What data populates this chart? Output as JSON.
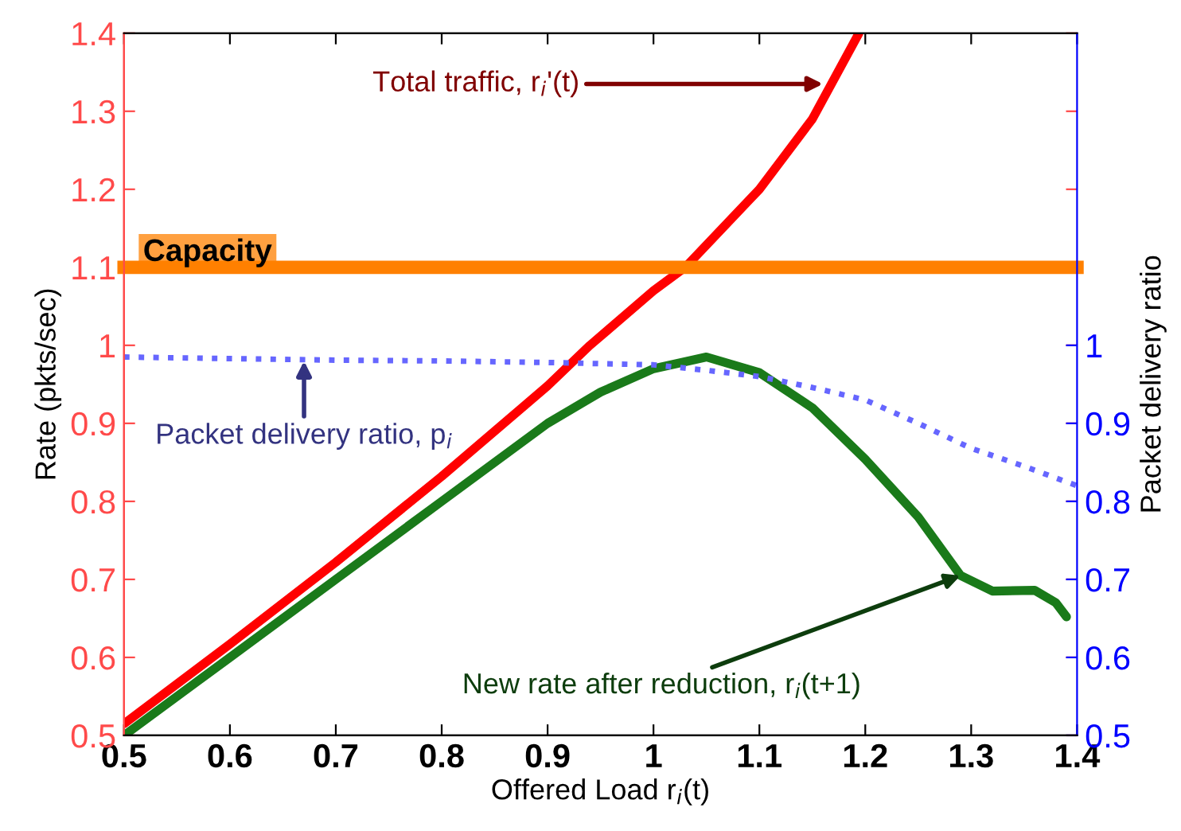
{
  "chart_data": {
    "type": "line",
    "xlabel": "Offered Load r$_{i}$(t)",
    "ylabel": "Rate (pkts/sec)",
    "y2label": "Packet delivery ratio",
    "xlim": [
      0.5,
      1.4
    ],
    "xticks": [
      0.5,
      0.6,
      0.7,
      0.8,
      0.9,
      1,
      1.1,
      1.2,
      1.3,
      1.4
    ],
    "ylim": [
      0.5,
      1.4
    ],
    "yticks": [
      0.5,
      0.6,
      0.7,
      0.8,
      0.9,
      1,
      1.1,
      1.2,
      1.3,
      1.4
    ],
    "y2lim": [
      0.5,
      1.4
    ],
    "y2ticks": [
      0.5,
      0.6,
      0.7,
      0.8,
      0.9,
      1
    ],
    "grid": false,
    "series": [
      {
        "color": "#ff0000",
        "line_style": "solid",
        "x": [
          0.5,
          0.6,
          0.7,
          0.8,
          0.9,
          0.94,
          1.0,
          1.03,
          1.1,
          1.15,
          1.194
        ],
        "values": [
          0.515,
          0.617,
          0.722,
          0.832,
          0.948,
          1.0,
          1.07,
          1.1,
          1.2,
          1.29,
          1.4
        ]
      },
      {
        "color": "#6666ff",
        "line_style": "dotted",
        "axis": "y2",
        "x": [
          0.5,
          0.6,
          0.7,
          0.8,
          0.9,
          1.0,
          1.05,
          1.1,
          1.15,
          1.2,
          1.25,
          1.3,
          1.35,
          1.4
        ],
        "values": [
          0.985,
          0.983,
          0.981,
          0.98,
          0.978,
          0.975,
          0.968,
          0.96,
          0.946,
          0.93,
          0.9,
          0.868,
          0.845,
          0.82
        ]
      },
      {
        "color": "#1a7a1a",
        "line_style": "solid",
        "x": [
          0.5,
          0.6,
          0.7,
          0.8,
          0.9,
          0.95,
          1.0,
          1.05,
          1.1,
          1.15,
          1.2,
          1.25,
          1.29,
          1.32,
          1.36,
          1.38,
          1.39
        ],
        "values": [
          0.5,
          0.6,
          0.7,
          0.8,
          0.9,
          0.94,
          0.97,
          0.985,
          0.965,
          0.92,
          0.854,
          0.78,
          0.705,
          0.685,
          0.686,
          0.67,
          0.652
        ]
      }
    ],
    "ref_lines": [
      {
        "axis": "y",
        "value": 1.1,
        "label": "Capacity",
        "color": "#ff8000"
      }
    ],
    "annotations": [
      {
        "text": "Total traffic, r$_{i}$'(t)",
        "x": 1.16,
        "y": 1.335
      },
      {
        "text": "Packet delivery ratio, p$_{i}$",
        "x": 0.67,
        "y": 0.98
      },
      {
        "text": "New rate after reduction, r$_{i}$(t+1)",
        "x": 1.29,
        "y": 0.705
      }
    ]
  }
}
